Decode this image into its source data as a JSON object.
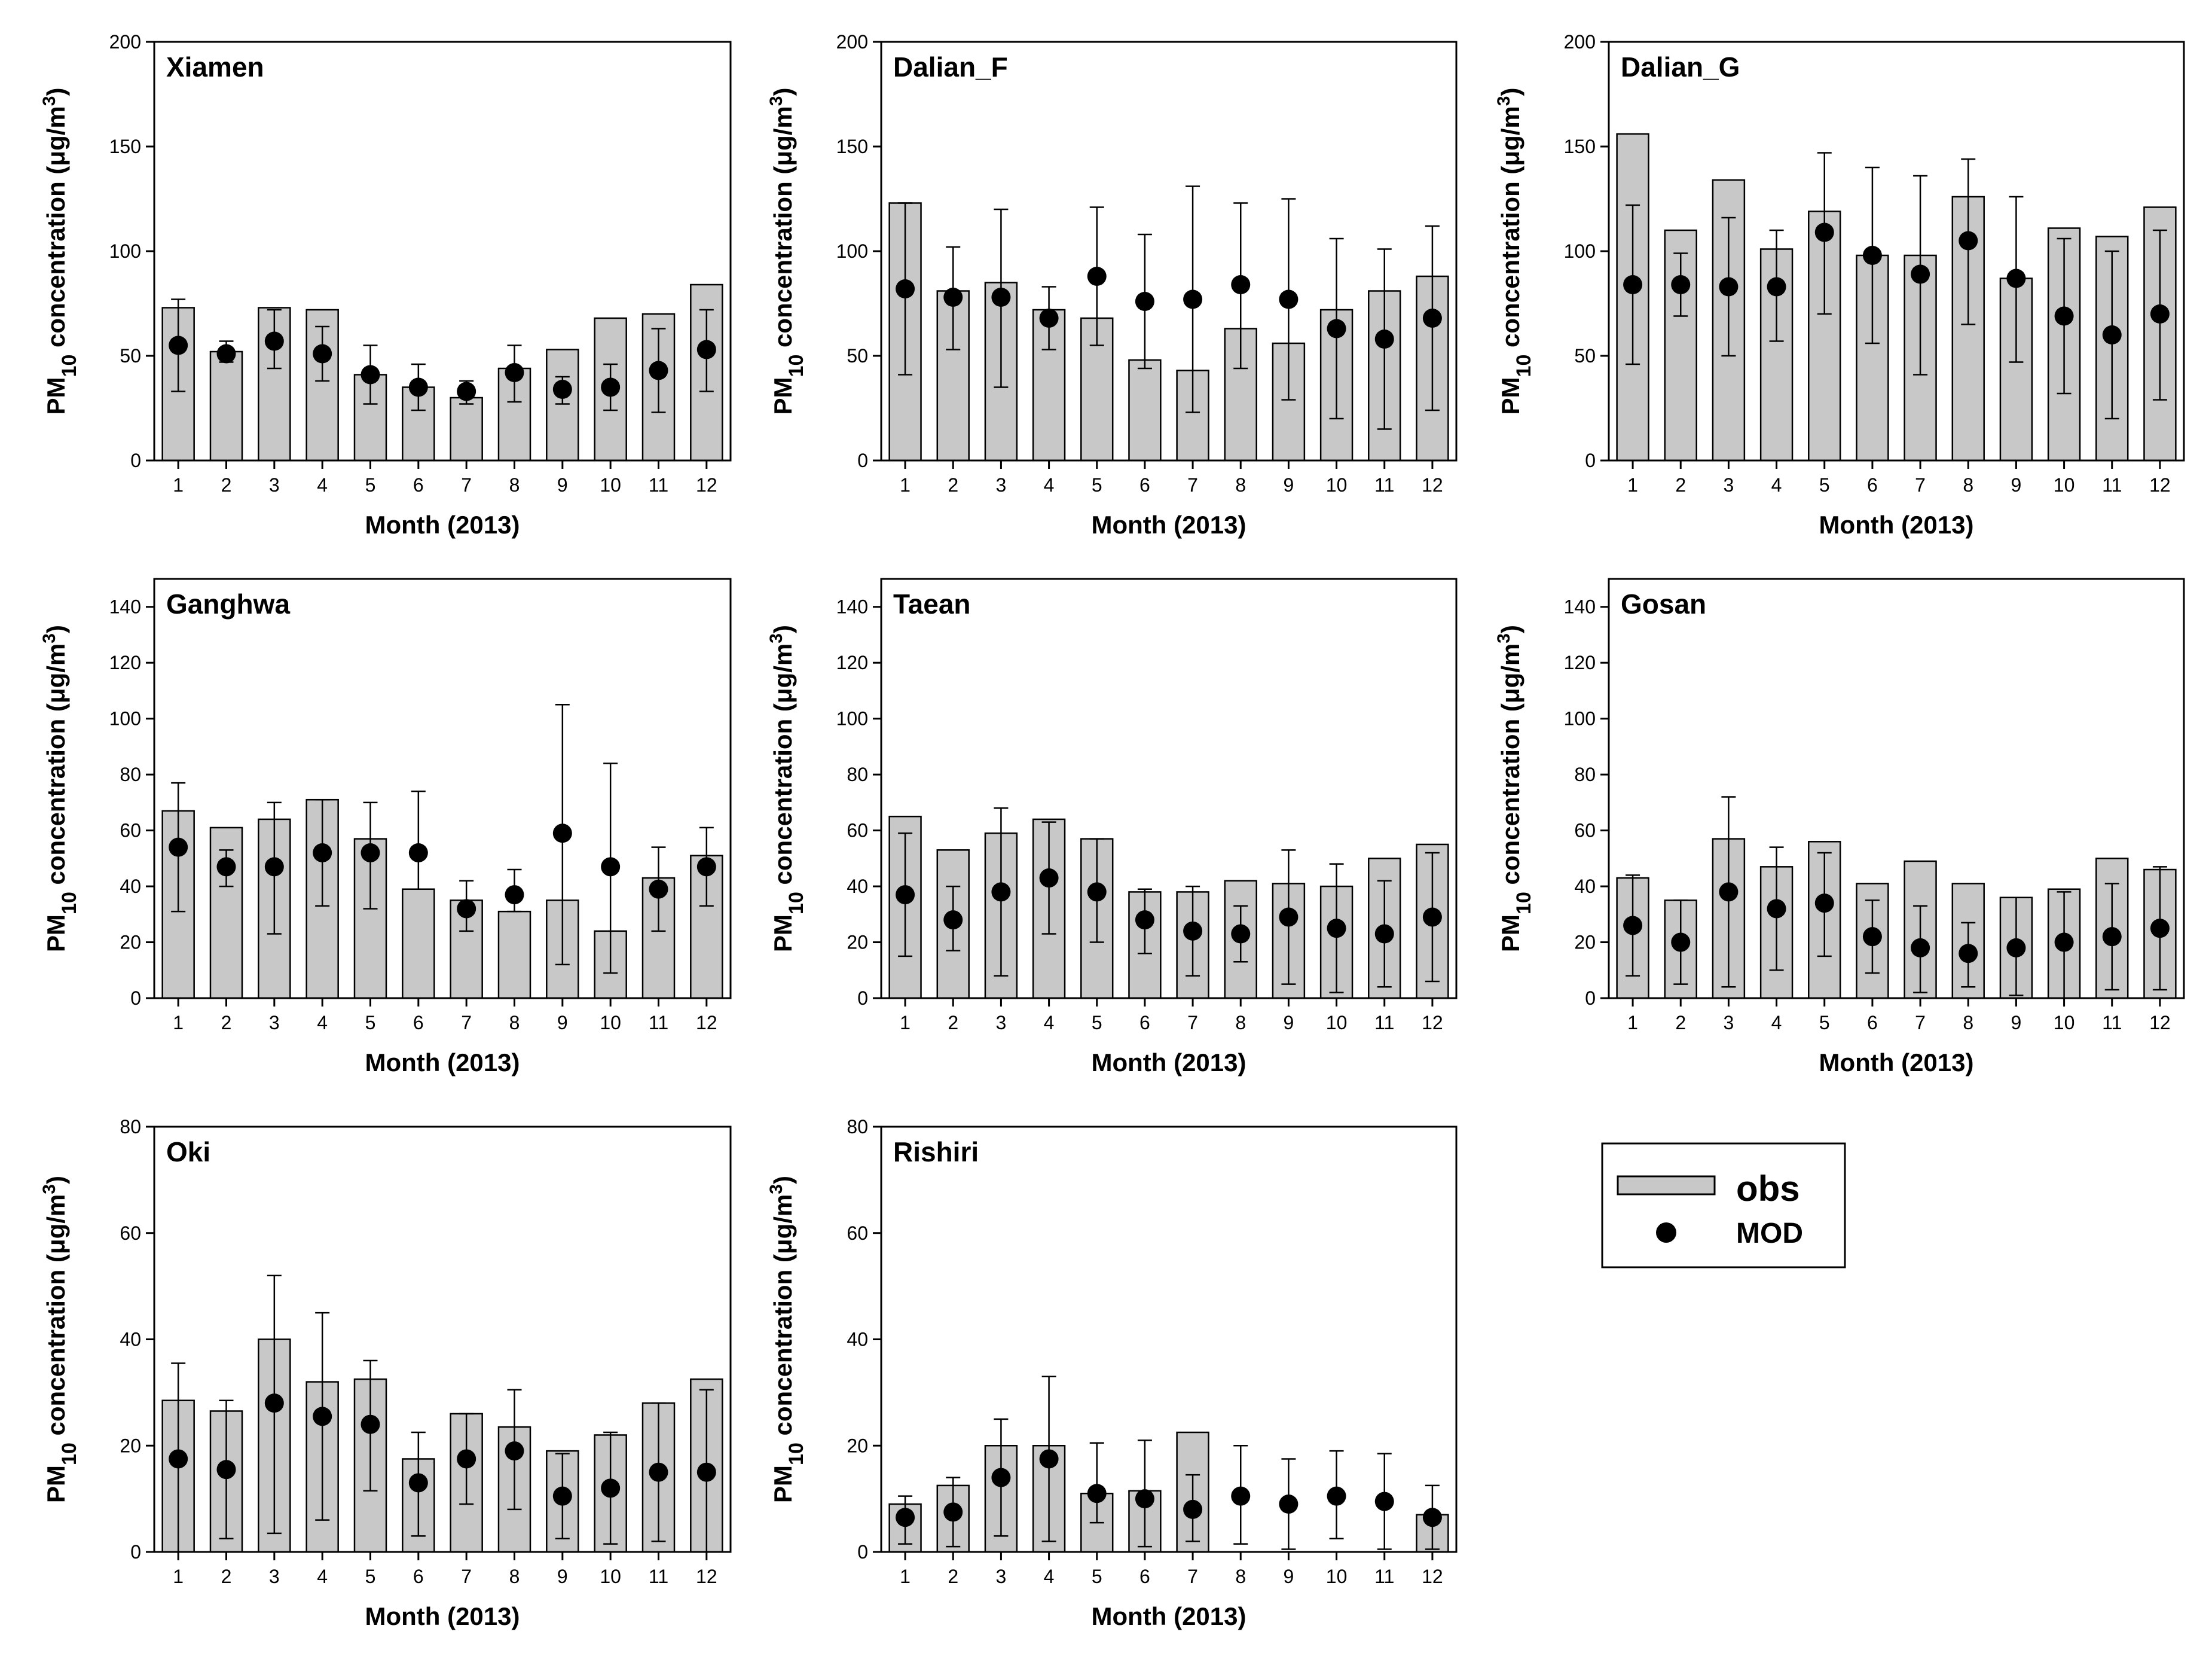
{
  "colors": {
    "bar_fill": "#c8c8c8",
    "bar_stroke": "#000000",
    "dot": "#000000",
    "background": "#ffffff"
  },
  "legend": {
    "obs_label": "obs",
    "mod_label": "MOD",
    "placement": "bottom-right"
  },
  "chart_data": [
    {
      "type": "bar",
      "title": "Xiamen",
      "xlabel": "Month (2013)",
      "ylabel": "PM10 concentration (μg/m3)",
      "categories": [
        "1",
        "2",
        "3",
        "4",
        "5",
        "6",
        "7",
        "8",
        "9",
        "10",
        "11",
        "12"
      ],
      "ylim": [
        0,
        200
      ],
      "yticks": [
        0,
        50,
        100,
        150,
        200
      ],
      "series": [
        {
          "name": "obs",
          "type": "bar",
          "values": [
            73,
            52,
            73,
            72,
            41,
            35,
            30,
            44,
            53,
            68,
            70,
            84
          ]
        },
        {
          "name": "MOD",
          "type": "scatter",
          "values": [
            55,
            51,
            57,
            51,
            41,
            35,
            33,
            42,
            34,
            35,
            43,
            53
          ],
          "err_low": [
            33,
            47,
            44,
            38,
            27,
            24,
            27,
            28,
            27,
            24,
            23,
            33
          ],
          "err_high": [
            77,
            57,
            72,
            64,
            55,
            46,
            38,
            55,
            40,
            46,
            63,
            72
          ]
        }
      ]
    },
    {
      "type": "bar",
      "title": "Dalian_F",
      "xlabel": "Month (2013)",
      "ylabel": "PM10 concentration (μg/m3)",
      "categories": [
        "1",
        "2",
        "3",
        "4",
        "5",
        "6",
        "7",
        "8",
        "9",
        "10",
        "11",
        "12"
      ],
      "ylim": [
        0,
        200
      ],
      "yticks": [
        0,
        50,
        100,
        150,
        200
      ],
      "series": [
        {
          "name": "obs",
          "type": "bar",
          "values": [
            123,
            81,
            85,
            72,
            68,
            48,
            43,
            63,
            56,
            72,
            81,
            88
          ]
        },
        {
          "name": "MOD",
          "type": "scatter",
          "values": [
            82,
            78,
            78,
            68,
            88,
            76,
            77,
            84,
            77,
            63,
            58,
            68
          ],
          "err_low": [
            41,
            53,
            35,
            53,
            55,
            44,
            23,
            44,
            29,
            20,
            15,
            24
          ],
          "err_high": [
            123,
            102,
            120,
            83,
            121,
            108,
            131,
            123,
            125,
            106,
            101,
            112
          ]
        }
      ]
    },
    {
      "type": "bar",
      "title": "Dalian_G",
      "xlabel": "Month (2013)",
      "ylabel": "PM10 concentration (μg/m3)",
      "categories": [
        "1",
        "2",
        "3",
        "4",
        "5",
        "6",
        "7",
        "8",
        "9",
        "10",
        "11",
        "12"
      ],
      "ylim": [
        0,
        200
      ],
      "yticks": [
        0,
        50,
        100,
        150,
        200
      ],
      "series": [
        {
          "name": "obs",
          "type": "bar",
          "values": [
            156,
            110,
            134,
            101,
            119,
            98,
            98,
            126,
            87,
            111,
            107,
            121
          ]
        },
        {
          "name": "MOD",
          "type": "scatter",
          "values": [
            84,
            84,
            83,
            83,
            109,
            98,
            89,
            105,
            87,
            69,
            60,
            70
          ],
          "err_low": [
            46,
            69,
            50,
            57,
            70,
            56,
            41,
            65,
            47,
            32,
            20,
            29
          ],
          "err_high": [
            122,
            99,
            116,
            110,
            147,
            140,
            136,
            144,
            126,
            106,
            100,
            110
          ]
        }
      ]
    },
    {
      "type": "bar",
      "title": "Ganghwa",
      "xlabel": "Month (2013)",
      "ylabel": "PM10 concentration (μg/m3)",
      "categories": [
        "1",
        "2",
        "3",
        "4",
        "5",
        "6",
        "7",
        "8",
        "9",
        "10",
        "11",
        "12"
      ],
      "ylim": [
        0,
        150
      ],
      "yticks": [
        0,
        20,
        40,
        60,
        80,
        100,
        120,
        140
      ],
      "series": [
        {
          "name": "obs",
          "type": "bar",
          "values": [
            67,
            61,
            64,
            71,
            57,
            39,
            35,
            31,
            35,
            24,
            43,
            51
          ]
        },
        {
          "name": "MOD",
          "type": "scatter",
          "values": [
            54,
            47,
            47,
            52,
            52,
            52,
            32,
            37,
            59,
            47,
            39,
            47
          ],
          "err_low": [
            31,
            40,
            23,
            33,
            32,
            39,
            24,
            31,
            12,
            9,
            24,
            33
          ],
          "err_high": [
            77,
            53,
            70,
            71,
            70,
            74,
            42,
            46,
            105,
            84,
            54,
            61
          ]
        }
      ]
    },
    {
      "type": "bar",
      "title": "Taean",
      "xlabel": "Month (2013)",
      "ylabel": "PM10 concentration (μg/m3)",
      "categories": [
        "1",
        "2",
        "3",
        "4",
        "5",
        "6",
        "7",
        "8",
        "9",
        "10",
        "11",
        "12"
      ],
      "ylim": [
        0,
        150
      ],
      "yticks": [
        0,
        20,
        40,
        60,
        80,
        100,
        120,
        140
      ],
      "series": [
        {
          "name": "obs",
          "type": "bar",
          "values": [
            65,
            53,
            59,
            64,
            57,
            38,
            38,
            42,
            41,
            40,
            50,
            55
          ]
        },
        {
          "name": "MOD",
          "type": "scatter",
          "values": [
            37,
            28,
            38,
            43,
            38,
            28,
            24,
            23,
            29,
            25,
            23,
            29
          ],
          "err_low": [
            15,
            17,
            8,
            23,
            20,
            16,
            8,
            13,
            5,
            2,
            4,
            6
          ],
          "err_high": [
            59,
            40,
            68,
            63,
            57,
            39,
            40,
            33,
            53,
            48,
            42,
            52
          ]
        }
      ]
    },
    {
      "type": "bar",
      "title": "Gosan",
      "xlabel": "Month (2013)",
      "ylabel": "PM10 concentration (μg/m3)",
      "categories": [
        "1",
        "2",
        "3",
        "4",
        "5",
        "6",
        "7",
        "8",
        "9",
        "10",
        "11",
        "12"
      ],
      "ylim": [
        0,
        150
      ],
      "yticks": [
        0,
        20,
        40,
        60,
        80,
        100,
        120,
        140
      ],
      "series": [
        {
          "name": "obs",
          "type": "bar",
          "values": [
            43,
            35,
            57,
            47,
            56,
            41,
            49,
            41,
            36,
            39,
            50,
            46
          ]
        },
        {
          "name": "MOD",
          "type": "scatter",
          "values": [
            26,
            20,
            38,
            32,
            34,
            22,
            18,
            16,
            18,
            20,
            22,
            25
          ],
          "err_low": [
            8,
            5,
            4,
            10,
            15,
            9,
            2,
            4,
            1,
            0,
            3,
            3
          ],
          "err_high": [
            44,
            35,
            72,
            54,
            52,
            35,
            33,
            27,
            36,
            38,
            41,
            47
          ]
        }
      ]
    },
    {
      "type": "bar",
      "title": "Oki",
      "xlabel": "Month (2013)",
      "ylabel": "PM10 concentration (μg/m3)",
      "categories": [
        "1",
        "2",
        "3",
        "4",
        "5",
        "6",
        "7",
        "8",
        "9",
        "10",
        "11",
        "12"
      ],
      "ylim": [
        0,
        80
      ],
      "yticks": [
        0,
        20,
        40,
        60,
        80
      ],
      "series": [
        {
          "name": "obs",
          "type": "bar",
          "values": [
            28.5,
            26.5,
            40,
            32,
            32.5,
            17.5,
            26,
            23.5,
            19,
            22,
            28,
            32.5
          ]
        },
        {
          "name": "MOD",
          "type": "scatter",
          "values": [
            17.5,
            15.5,
            28,
            25.5,
            24,
            13,
            17.5,
            19,
            10.5,
            12,
            15,
            15
          ],
          "err_low": [
            0,
            2.5,
            3.5,
            6,
            11.5,
            3,
            9,
            8,
            2.5,
            1.5,
            2,
            0
          ],
          "err_high": [
            35.5,
            28.5,
            52,
            45,
            36,
            22.5,
            26,
            30.5,
            18.5,
            22.5,
            28,
            30.5
          ]
        }
      ]
    },
    {
      "type": "bar",
      "title": "Rishiri",
      "xlabel": "Month (2013)",
      "ylabel": "PM10 concentration (μg/m3)",
      "categories": [
        "1",
        "2",
        "3",
        "4",
        "5",
        "6",
        "7",
        "8",
        "9",
        "10",
        "11",
        "12"
      ],
      "ylim": [
        0,
        80
      ],
      "yticks": [
        0,
        20,
        40,
        60,
        80
      ],
      "series": [
        {
          "name": "obs",
          "type": "bar",
          "values": [
            9,
            12.5,
            20,
            20,
            11,
            11.5,
            22.5,
            0,
            0,
            0,
            0,
            7
          ]
        },
        {
          "name": "MOD",
          "type": "scatter",
          "values": [
            6.5,
            7.5,
            14,
            17.5,
            11,
            10,
            8,
            10.5,
            9,
            10.5,
            9.5,
            6.5
          ],
          "err_low": [
            1.5,
            1,
            3,
            2,
            5.5,
            1,
            2,
            1.5,
            0.5,
            2.5,
            0.5,
            0.5
          ],
          "err_high": [
            10.5,
            14,
            25,
            33,
            20.5,
            21,
            14.5,
            20,
            17.5,
            19,
            18.5,
            12.5
          ]
        }
      ]
    }
  ]
}
